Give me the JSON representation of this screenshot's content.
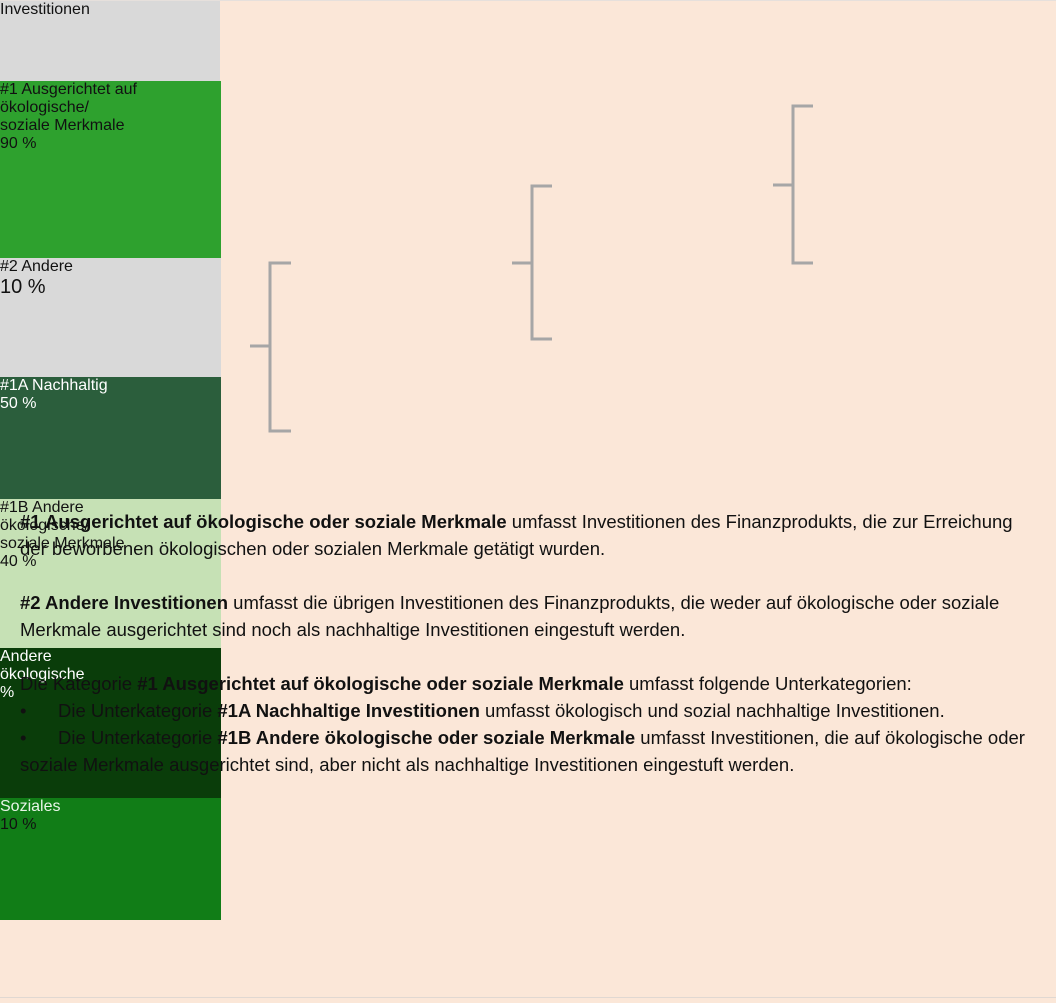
{
  "nodes": [
    {
      "lines": [
        "Investitionen"
      ]
    },
    {
      "lines": [
        "#1 Ausgerichtet auf",
        "ökologische/",
        "soziale Merkmale"
      ],
      "value": "90 %"
    },
    {
      "lines": [
        "#2 Andere"
      ],
      "value": "10 %"
    },
    {
      "lines": [
        "#1A Nachhaltig"
      ],
      "value": "50 %"
    },
    {
      "lines": [
        "#1B Andere",
        "ökologische/",
        "soziale Merkmale"
      ],
      "value": "40 %"
    },
    {
      "lines": [
        "Andere",
        "ökologische"
      ],
      "value": "%"
    },
    {
      "lines": [
        "Soziales"
      ],
      "value": "10 %"
    }
  ],
  "paragraphs": [
    [
      {
        "text": "#1 Ausgerichtet auf ökologische oder soziale Merkmale",
        "bold": true
      },
      {
        "text": " umfasst Investitionen des Finanzprodukts, die zur Erreichung der beworbenen ökologischen oder sozialen Merkmale getätigt wurden."
      }
    ],
    [
      {
        "text": "#2 Andere Investitionen",
        "bold": true
      },
      {
        "text": " umfasst die übrigen Investitionen des Finanzprodukts, die weder auf ökologische oder soziale Merkmale ausgerichtet sind noch als nachhaltige Investitionen eingestuft werden."
      }
    ],
    [
      {
        "text": "Die Kategorie "
      },
      {
        "text": "#1 Ausgerichtet auf ökologische oder soziale Merkmale",
        "bold": true
      },
      {
        "text": " umfasst folgende Unterkategorien:"
      }
    ],
    [
      {
        "text": "•"
      },
      {
        "text": "Die Unterkategorie "
      },
      {
        "text": "#1A Nachhaltige Investitionen",
        "bold": true
      },
      {
        "text": " umfasst ökologisch und sozial nachhaltige Investitionen."
      }
    ],
    [
      {
        "text": "•"
      },
      {
        "text": "Die Unterkategorie "
      },
      {
        "text": "#1B Andere ökologische oder soziale Merkmale",
        "bold": true
      },
      {
        "text": " umfasst Investitionen, die auf ökologische oder soziale Merkmale ausgerichtet sind, aber nicht als nachhaltige Investitionen eingestuft werden."
      }
    ]
  ]
}
